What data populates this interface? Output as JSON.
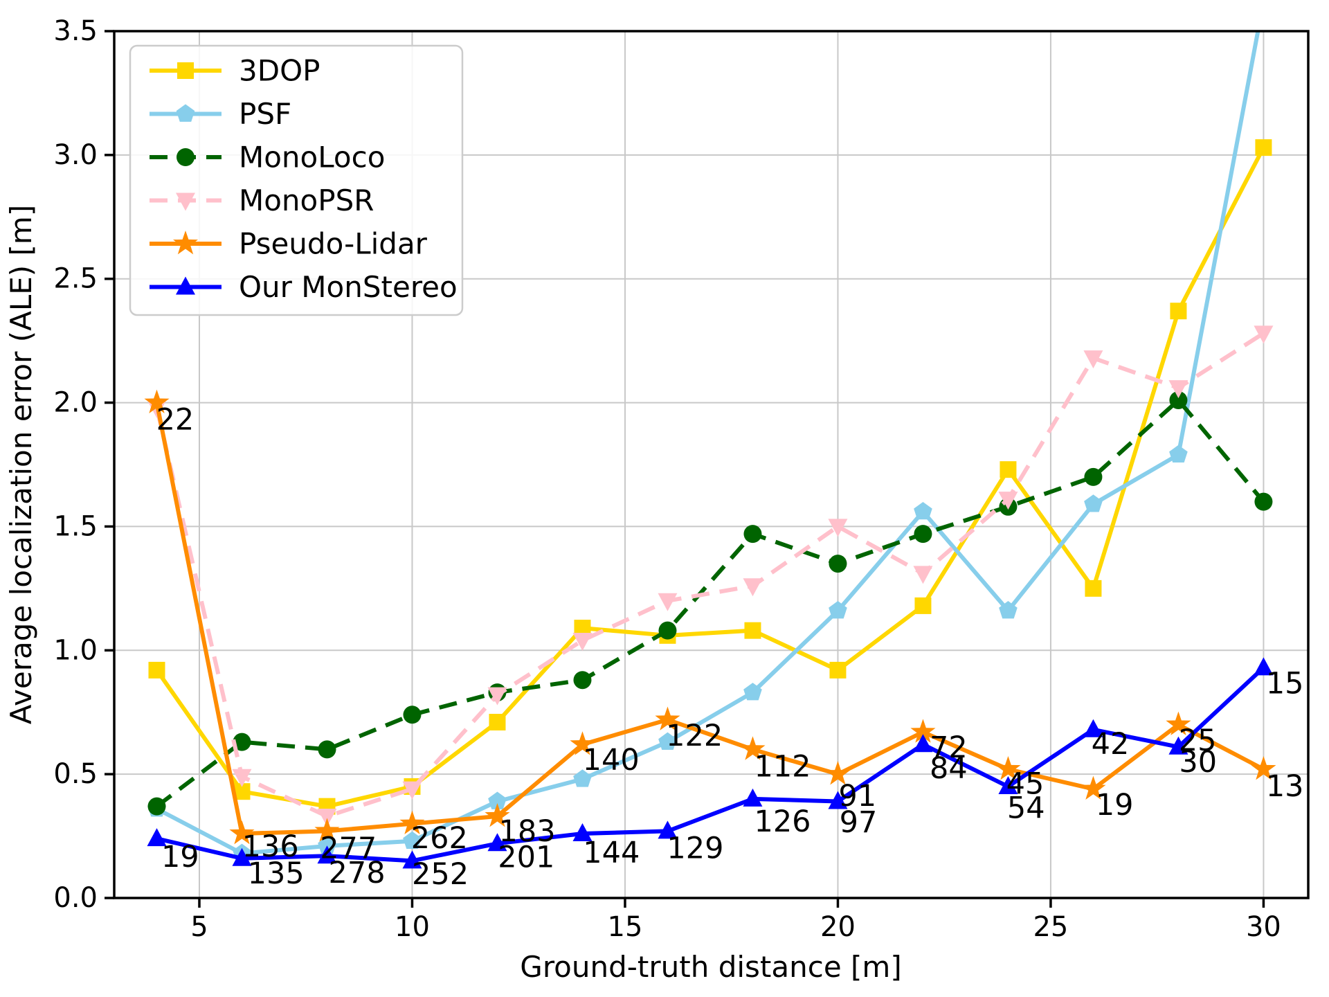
{
  "chart_data": {
    "type": "line",
    "title": "",
    "xlabel": "Ground-truth distance [m]",
    "ylabel": "Average localization error (ALE) [m]",
    "xlim": [
      3.0,
      31.05
    ],
    "ylim": [
      0.0,
      3.5
    ],
    "grid": true,
    "legend_position": "upper-left",
    "x_ticks": [
      5,
      10,
      15,
      20,
      25,
      30
    ],
    "x_tick_labels": [
      "5",
      "10",
      "15",
      "20",
      "25",
      "30"
    ],
    "y_ticks": [
      0.0,
      0.5,
      1.0,
      1.5,
      2.0,
      2.5,
      3.0,
      3.5
    ],
    "y_tick_labels": [
      "0.0",
      "0.5",
      "1.0",
      "1.5",
      "2.0",
      "2.5",
      "3.0",
      "3.5"
    ],
    "x": [
      4,
      6,
      8,
      10,
      12,
      14,
      16,
      18,
      20,
      22,
      24,
      26,
      28,
      30
    ],
    "series": [
      {
        "name": "3DOP",
        "color": "#FFD700",
        "marker": "square",
        "dashed": false,
        "values": [
          0.92,
          0.43,
          0.37,
          0.45,
          0.71,
          1.09,
          1.06,
          1.08,
          0.92,
          1.18,
          1.73,
          1.25,
          2.37,
          3.03
        ]
      },
      {
        "name": "PSF",
        "color": "#87CEEB",
        "marker": "pentagon",
        "dashed": false,
        "values": [
          0.36,
          0.18,
          0.21,
          0.23,
          0.39,
          0.48,
          0.63,
          0.83,
          1.16,
          1.56,
          1.16,
          1.59,
          1.79,
          3.62
        ]
      },
      {
        "name": "MonoLoco",
        "color": "#006400",
        "marker": "circle",
        "dashed": true,
        "values": [
          0.37,
          0.63,
          0.6,
          0.74,
          0.83,
          0.88,
          1.08,
          1.47,
          1.35,
          1.47,
          1.58,
          1.7,
          2.01,
          1.6
        ]
      },
      {
        "name": "MonoPSR",
        "color": "#FFC0CB",
        "marker": "triangle-down",
        "dashed": true,
        "values": [
          1.98,
          0.49,
          0.33,
          0.44,
          0.82,
          1.04,
          1.2,
          1.26,
          1.5,
          1.31,
          1.61,
          2.18,
          2.06,
          2.28
        ]
      },
      {
        "name": "Pseudo-Lidar",
        "color": "#FF8C00",
        "marker": "star",
        "dashed": false,
        "values": [
          2.0,
          0.26,
          0.27,
          0.3,
          0.33,
          0.62,
          0.72,
          0.6,
          0.5,
          0.67,
          0.52,
          0.44,
          0.7,
          0.52
        ]
      },
      {
        "name": "Our MonStereo",
        "color": "#0000FF",
        "marker": "triangle-up",
        "dashed": false,
        "values": [
          0.24,
          0.16,
          0.17,
          0.15,
          0.22,
          0.26,
          0.27,
          0.4,
          0.39,
          0.62,
          0.45,
          0.68,
          0.61,
          0.93
        ]
      }
    ],
    "annotations": [
      {
        "text": "22",
        "x": 4.43,
        "y": 1.93
      },
      {
        "text": "19",
        "x": 4.55,
        "y": 0.165
      },
      {
        "text": "136",
        "x": 6.67,
        "y": 0.207
      },
      {
        "text": "135",
        "x": 6.8,
        "y": 0.098
      },
      {
        "text": "277",
        "x": 8.5,
        "y": 0.2
      },
      {
        "text": "278",
        "x": 8.7,
        "y": 0.1
      },
      {
        "text": "262",
        "x": 10.64,
        "y": 0.24
      },
      {
        "text": "252",
        "x": 10.66,
        "y": 0.095
      },
      {
        "text": "183",
        "x": 12.7,
        "y": 0.268
      },
      {
        "text": "201",
        "x": 12.68,
        "y": 0.163
      },
      {
        "text": "140",
        "x": 14.67,
        "y": 0.556
      },
      {
        "text": "144",
        "x": 14.68,
        "y": 0.182
      },
      {
        "text": "122",
        "x": 16.63,
        "y": 0.654
      },
      {
        "text": "129",
        "x": 16.65,
        "y": 0.2
      },
      {
        "text": "112",
        "x": 18.7,
        "y": 0.53
      },
      {
        "text": "126",
        "x": 18.7,
        "y": 0.308
      },
      {
        "text": "91",
        "x": 20.46,
        "y": 0.411
      },
      {
        "text": "97",
        "x": 20.48,
        "y": 0.305
      },
      {
        "text": "72",
        "x": 22.6,
        "y": 0.607
      },
      {
        "text": "84",
        "x": 22.6,
        "y": 0.523
      },
      {
        "text": "45",
        "x": 24.4,
        "y": 0.46
      },
      {
        "text": "54",
        "x": 24.42,
        "y": 0.362
      },
      {
        "text": "42",
        "x": 26.4,
        "y": 0.62
      },
      {
        "text": "19",
        "x": 26.5,
        "y": 0.375
      },
      {
        "text": "25",
        "x": 28.45,
        "y": 0.635
      },
      {
        "text": "30",
        "x": 28.46,
        "y": 0.548
      },
      {
        "text": "15",
        "x": 30.5,
        "y": 0.865
      },
      {
        "text": "13",
        "x": 30.5,
        "y": 0.45
      }
    ]
  },
  "style": {
    "grid_color": "#c8c8c8",
    "spine_color": "#000000",
    "legend_border_color": "#cccccc",
    "legend_bg_color": "#ffffff"
  }
}
